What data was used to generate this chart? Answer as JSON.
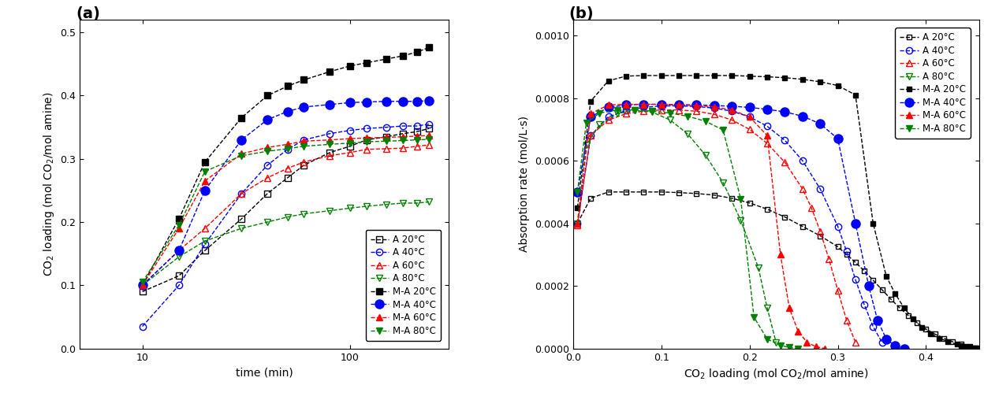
{
  "panel_a": {
    "title": "(a)",
    "xlabel": "time (min)",
    "ylabel": "CO$_2$ loading (mol CO$_2$/mol amine)",
    "xlim": [
      5,
      300
    ],
    "ylim": [
      0.0,
      0.52
    ],
    "yticks": [
      0.0,
      0.1,
      0.2,
      0.3,
      0.4,
      0.5
    ],
    "xticks": [
      10,
      100
    ],
    "series": {
      "A_20": {
        "label": "A 20°C",
        "x": [
          10,
          15,
          20,
          30,
          40,
          50,
          60,
          80,
          100,
          120,
          150,
          180,
          210,
          240
        ],
        "y": [
          0.09,
          0.115,
          0.155,
          0.205,
          0.245,
          0.27,
          0.29,
          0.31,
          0.32,
          0.33,
          0.335,
          0.34,
          0.343,
          0.348
        ],
        "color": "#000000",
        "linestyle": "--",
        "marker": "s",
        "fillstyle": "none",
        "markersize": 6
      },
      "A_40": {
        "label": "A 40°C",
        "x": [
          10,
          15,
          20,
          30,
          40,
          50,
          60,
          80,
          100,
          120,
          150,
          180,
          210,
          240
        ],
        "y": [
          0.035,
          0.1,
          0.165,
          0.245,
          0.29,
          0.315,
          0.33,
          0.34,
          0.345,
          0.348,
          0.35,
          0.352,
          0.352,
          0.355
        ],
        "color": "#0000ff",
        "linestyle": "--",
        "marker": "o",
        "fillstyle": "none",
        "markersize": 6
      },
      "A_60": {
        "label": "A 60°C",
        "x": [
          10,
          15,
          20,
          30,
          40,
          50,
          60,
          80,
          100,
          120,
          150,
          180,
          210,
          240
        ],
        "y": [
          0.1,
          0.155,
          0.19,
          0.245,
          0.27,
          0.285,
          0.295,
          0.305,
          0.31,
          0.315,
          0.316,
          0.317,
          0.32,
          0.322
        ],
        "color": "#ff0000",
        "linestyle": "--",
        "marker": "^",
        "fillstyle": "none",
        "markersize": 6
      },
      "A_80": {
        "label": "A 80°C",
        "x": [
          10,
          15,
          20,
          30,
          40,
          50,
          60,
          80,
          100,
          120,
          150,
          180,
          210,
          240
        ],
        "y": [
          0.1,
          0.145,
          0.17,
          0.19,
          0.2,
          0.208,
          0.213,
          0.218,
          0.222,
          0.225,
          0.228,
          0.23,
          0.23,
          0.232
        ],
        "color": "#008000",
        "linestyle": "--",
        "marker": "v",
        "fillstyle": "none",
        "markersize": 6
      },
      "MA_20": {
        "label": "M-A 20°C",
        "x": [
          10,
          15,
          20,
          30,
          40,
          50,
          60,
          80,
          100,
          120,
          150,
          180,
          210,
          240
        ],
        "y": [
          0.1,
          0.205,
          0.295,
          0.365,
          0.4,
          0.415,
          0.425,
          0.438,
          0.447,
          0.452,
          0.458,
          0.463,
          0.469,
          0.476
        ],
        "color": "#000000",
        "linestyle": "--",
        "marker": "s",
        "fillstyle": "full",
        "markersize": 6
      },
      "MA_40": {
        "label": "M-A 40°C",
        "x": [
          10,
          15,
          20,
          30,
          40,
          50,
          60,
          80,
          100,
          120,
          150,
          180,
          210,
          240
        ],
        "y": [
          0.1,
          0.155,
          0.25,
          0.33,
          0.362,
          0.375,
          0.382,
          0.386,
          0.389,
          0.39,
          0.391,
          0.391,
          0.391,
          0.392
        ],
        "color": "#0000ff",
        "linestyle": "--",
        "marker": "o",
        "fillstyle": "full",
        "markersize": 8
      },
      "MA_60": {
        "label": "M-A 60°C",
        "x": [
          10,
          15,
          20,
          30,
          40,
          50,
          60,
          80,
          100,
          120,
          150,
          180,
          210,
          240
        ],
        "y": [
          0.1,
          0.19,
          0.265,
          0.308,
          0.318,
          0.323,
          0.328,
          0.33,
          0.332,
          0.333,
          0.334,
          0.335,
          0.336,
          0.337
        ],
        "color": "#ff0000",
        "linestyle": "--",
        "marker": "^",
        "fillstyle": "full",
        "markersize": 6
      },
      "MA_80": {
        "label": "M-A 80°C",
        "x": [
          10,
          15,
          20,
          30,
          40,
          50,
          60,
          80,
          100,
          120,
          150,
          180,
          210,
          240
        ],
        "y": [
          0.105,
          0.195,
          0.28,
          0.305,
          0.312,
          0.316,
          0.32,
          0.323,
          0.325,
          0.327,
          0.328,
          0.329,
          0.33,
          0.331
        ],
        "color": "#008000",
        "linestyle": "--",
        "marker": "v",
        "fillstyle": "full",
        "markersize": 6
      }
    }
  },
  "panel_b": {
    "title": "(b)",
    "xlabel": "CO$_2$ loading (mol CO$_2$/mol amine)",
    "ylabel": "Absorption rate (mol/L·s)",
    "xlim": [
      0.0,
      0.46
    ],
    "ylim": [
      0.0,
      0.00105
    ],
    "xticks": [
      0.0,
      0.1,
      0.2,
      0.3,
      0.4
    ],
    "yticks": [
      0.0,
      0.0002,
      0.0004,
      0.0006,
      0.0008,
      0.001
    ],
    "series": {
      "A_20": {
        "label": "A 20°C",
        "x": [
          0.005,
          0.02,
          0.04,
          0.06,
          0.08,
          0.1,
          0.12,
          0.14,
          0.16,
          0.18,
          0.2,
          0.22,
          0.24,
          0.26,
          0.28,
          0.3,
          0.31,
          0.32,
          0.33,
          0.34,
          0.35,
          0.36,
          0.37,
          0.38,
          0.39,
          0.4,
          0.41,
          0.42,
          0.43,
          0.44,
          0.45
        ],
        "y": [
          0.0004,
          0.00048,
          0.0005,
          0.0005,
          0.0005,
          0.0005,
          0.000498,
          0.000495,
          0.00049,
          0.00048,
          0.000465,
          0.000445,
          0.00042,
          0.00039,
          0.00036,
          0.000325,
          0.0003,
          0.000275,
          0.000248,
          0.000218,
          0.000188,
          0.000158,
          0.00013,
          0.000105,
          8.2e-05,
          6.2e-05,
          4.6e-05,
          3.3e-05,
          2.2e-05,
          1.3e-05,
          6e-06
        ],
        "color": "#000000",
        "linestyle": "--",
        "marker": "s",
        "fillstyle": "none",
        "markersize": 5
      },
      "A_40": {
        "label": "A 40°C",
        "x": [
          0.005,
          0.02,
          0.04,
          0.06,
          0.08,
          0.1,
          0.12,
          0.14,
          0.16,
          0.18,
          0.2,
          0.22,
          0.24,
          0.26,
          0.28,
          0.3,
          0.31,
          0.32,
          0.33,
          0.34,
          0.35
        ],
        "y": [
          0.0004,
          0.00068,
          0.00074,
          0.00076,
          0.00077,
          0.000775,
          0.000775,
          0.000773,
          0.000768,
          0.000758,
          0.00074,
          0.00071,
          0.000665,
          0.0006,
          0.00051,
          0.00039,
          0.00031,
          0.00022,
          0.00014,
          7e-05,
          2e-05
        ],
        "color": "#0000ff",
        "linestyle": "--",
        "marker": "o",
        "fillstyle": "none",
        "markersize": 6
      },
      "A_60": {
        "label": "A 60°C",
        "x": [
          0.005,
          0.02,
          0.04,
          0.06,
          0.08,
          0.1,
          0.12,
          0.14,
          0.16,
          0.18,
          0.2,
          0.22,
          0.24,
          0.26,
          0.27,
          0.28,
          0.29,
          0.3,
          0.31,
          0.32
        ],
        "y": [
          0.000395,
          0.00068,
          0.00073,
          0.00075,
          0.000758,
          0.000762,
          0.000762,
          0.000758,
          0.000748,
          0.00073,
          0.0007,
          0.000655,
          0.000595,
          0.00051,
          0.00045,
          0.000375,
          0.000285,
          0.000185,
          9e-05,
          2e-05
        ],
        "color": "#ff0000",
        "linestyle": "--",
        "marker": "^",
        "fillstyle": "none",
        "markersize": 6
      },
      "A_80": {
        "label": "A 80°C",
        "x": [
          0.005,
          0.015,
          0.03,
          0.05,
          0.07,
          0.09,
          0.11,
          0.13,
          0.15,
          0.17,
          0.19,
          0.21,
          0.22,
          0.23
        ],
        "y": [
          0.0004,
          0.00065,
          0.000715,
          0.00075,
          0.00076,
          0.000755,
          0.00073,
          0.000685,
          0.000618,
          0.00053,
          0.00041,
          0.000258,
          0.00013,
          2e-05
        ],
        "color": "#008000",
        "linestyle": "--",
        "marker": "v",
        "fillstyle": "none",
        "markersize": 6
      },
      "MA_20": {
        "label": "M-A 20°C",
        "x": [
          0.005,
          0.02,
          0.04,
          0.06,
          0.08,
          0.1,
          0.12,
          0.14,
          0.16,
          0.18,
          0.2,
          0.22,
          0.24,
          0.26,
          0.28,
          0.3,
          0.32,
          0.34,
          0.355,
          0.365,
          0.375,
          0.385,
          0.395,
          0.405,
          0.415,
          0.425,
          0.435,
          0.44,
          0.445,
          0.45,
          0.453,
          0.456,
          0.458,
          0.46
        ],
        "y": [
          0.00045,
          0.00079,
          0.000855,
          0.00087,
          0.000872,
          0.000872,
          0.000872,
          0.000872,
          0.000872,
          0.000872,
          0.00087,
          0.000868,
          0.000865,
          0.00086,
          0.000852,
          0.00084,
          0.00081,
          0.0004,
          0.00023,
          0.000175,
          0.00013,
          9.5e-05,
          6.8e-05,
          4.8e-05,
          3.3e-05,
          2.2e-05,
          1.3e-05,
          9e-06,
          6e-06,
          4e-06,
          2e-06,
          1e-06,
          1e-06,
          0.0
        ],
        "color": "#000000",
        "linestyle": "--",
        "marker": "s",
        "fillstyle": "full",
        "markersize": 5
      },
      "MA_40": {
        "label": "M-A 40°C",
        "x": [
          0.005,
          0.02,
          0.04,
          0.06,
          0.08,
          0.1,
          0.12,
          0.14,
          0.16,
          0.18,
          0.2,
          0.22,
          0.24,
          0.26,
          0.28,
          0.3,
          0.32,
          0.335,
          0.345,
          0.355,
          0.365,
          0.375
        ],
        "y": [
          0.0005,
          0.00074,
          0.00077,
          0.000778,
          0.00078,
          0.00078,
          0.000779,
          0.000778,
          0.000776,
          0.000774,
          0.00077,
          0.000764,
          0.000756,
          0.000742,
          0.000718,
          0.00067,
          0.0004,
          0.0002,
          9e-05,
          3e-05,
          8e-06,
          0.0
        ],
        "color": "#0000ff",
        "linestyle": "--",
        "marker": "o",
        "fillstyle": "full",
        "markersize": 8
      },
      "MA_60": {
        "label": "M-A 60°C",
        "x": [
          0.005,
          0.02,
          0.04,
          0.06,
          0.08,
          0.1,
          0.12,
          0.14,
          0.16,
          0.18,
          0.2,
          0.22,
          0.235,
          0.245,
          0.255,
          0.265,
          0.275,
          0.285
        ],
        "y": [
          0.0004,
          0.00075,
          0.000778,
          0.00078,
          0.00078,
          0.00078,
          0.000778,
          0.000776,
          0.000772,
          0.000762,
          0.00074,
          0.00068,
          0.0003,
          0.00013,
          5.5e-05,
          2e-05,
          6e-06,
          0.0
        ],
        "color": "#ff0000",
        "linestyle": "--",
        "marker": "^",
        "fillstyle": "full",
        "markersize": 6
      },
      "MA_80": {
        "label": "M-A 80°C",
        "x": [
          0.005,
          0.015,
          0.03,
          0.05,
          0.07,
          0.09,
          0.11,
          0.13,
          0.15,
          0.17,
          0.19,
          0.205,
          0.22,
          0.235,
          0.245,
          0.255
        ],
        "y": [
          0.0005,
          0.00072,
          0.000752,
          0.000762,
          0.000762,
          0.000758,
          0.000752,
          0.000742,
          0.000726,
          0.000698,
          0.000478,
          0.0001,
          3e-05,
          1e-05,
          3e-06,
          0.0
        ],
        "color": "#008000",
        "linestyle": "--",
        "marker": "v",
        "fillstyle": "full",
        "markersize": 6
      }
    }
  },
  "legend_order": [
    "A_20",
    "A_40",
    "A_60",
    "A_80",
    "MA_20",
    "MA_40",
    "MA_60",
    "MA_80"
  ]
}
